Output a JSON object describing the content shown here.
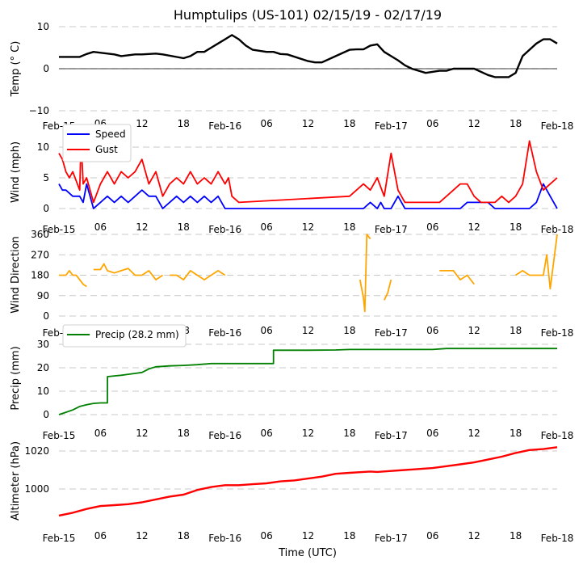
{
  "title": "Humptulips (US-101) 02/15/19 - 02/17/19",
  "xlabel": "Time (UTC)",
  "x_ticks": [
    "Feb-15",
    "06",
    "12",
    "18",
    "Feb-16",
    "06",
    "12",
    "18",
    "Feb-17",
    "06",
    "12",
    "18",
    "Feb-18"
  ],
  "chart_data": [
    {
      "type": "line",
      "name": "temperature",
      "ylabel": "Temp ($^\\circ$C)",
      "ylabel_display": "Temp (° C)",
      "ylim": [
        -10,
        10
      ],
      "yticks": [
        {
          "v": 10,
          "label": "10"
        },
        {
          "v": 0,
          "label": "0"
        },
        {
          "v": -10,
          "label": "−10"
        }
      ],
      "zero_line": true,
      "series": [
        {
          "name": "Temp",
          "color": "#000000",
          "x_hours": [
            0,
            3,
            4,
            5,
            8,
            9,
            11,
            12,
            14,
            15,
            18,
            19,
            20,
            21,
            22,
            23,
            24,
            25,
            26,
            27,
            28,
            30,
            31,
            32,
            33,
            36,
            37,
            38,
            40,
            42,
            43,
            44,
            45,
            46,
            47,
            48,
            49,
            50,
            51,
            52,
            53,
            55,
            56,
            57,
            58,
            59,
            60,
            62,
            63,
            64,
            65,
            66,
            67,
            68,
            69,
            70,
            71,
            72
          ],
          "values": [
            2.8,
            2.8,
            3.5,
            4,
            3.4,
            3,
            3.4,
            3.4,
            3.6,
            3.4,
            2.5,
            3.0,
            4,
            4,
            5,
            6,
            7,
            8,
            7,
            5.5,
            4.5,
            4,
            4,
            3.5,
            3.4,
            1.8,
            1.5,
            1.5,
            3,
            4.5,
            4.6,
            4.6,
            5.5,
            5.8,
            4,
            3,
            2,
            0.8,
            0,
            -0.5,
            -1,
            -0.5,
            -0.5,
            0,
            0,
            0,
            0,
            -1.5,
            -2,
            -2,
            -2,
            -1,
            3,
            4.5,
            6,
            7,
            7,
            6
          ]
        }
      ]
    },
    {
      "type": "line",
      "name": "wind",
      "ylabel": "Wind (mph)",
      "ylim": [
        -0.5,
        11.5
      ],
      "yticks": [
        {
          "v": 10,
          "label": "10"
        },
        {
          "v": 5,
          "label": "5"
        },
        {
          "v": 0,
          "label": "0"
        }
      ],
      "legend": {
        "placement": "top-left",
        "entries": [
          {
            "label": "Speed",
            "color": "#0000ff"
          },
          {
            "label": "Gust",
            "color": "#ff0000"
          }
        ]
      },
      "series": [
        {
          "name": "Speed",
          "color": "#0000ff",
          "x_hours": [
            0,
            0.5,
            1,
            2,
            3,
            3.5,
            4,
            5,
            6,
            7,
            8,
            9,
            10,
            11,
            12,
            13,
            14,
            15,
            16,
            17,
            18,
            19,
            20,
            21,
            22,
            23,
            24,
            24.5,
            25,
            44,
            45,
            46,
            46.5,
            47,
            48,
            49,
            50,
            51,
            52,
            56,
            57,
            58,
            59,
            60,
            61,
            62,
            63,
            64,
            65,
            66,
            67,
            68,
            69,
            70,
            71,
            72
          ],
          "values": [
            4,
            3,
            3,
            2,
            2,
            1,
            4,
            0,
            1,
            2,
            1,
            2,
            1,
            2,
            3,
            2,
            2,
            0,
            1,
            2,
            1,
            2,
            1,
            2,
            1,
            2,
            0,
            0,
            0,
            0,
            1,
            0,
            1,
            0,
            0,
            2,
            0,
            0,
            0,
            0,
            0,
            0,
            1,
            1,
            1,
            1,
            0,
            0,
            0,
            0,
            0,
            0,
            1,
            4,
            2,
            0
          ]
        },
        {
          "name": "Gust",
          "color": "#ff0000",
          "x_hours": [
            0,
            0.5,
            1,
            1.5,
            2,
            3,
            3.2,
            3.5,
            4,
            5,
            6,
            7,
            8,
            9,
            10,
            11,
            12,
            13,
            14,
            15,
            16,
            17,
            18,
            19,
            20,
            21,
            22,
            23,
            24,
            24.5,
            25,
            26,
            42,
            44,
            45,
            46,
            47,
            48,
            49,
            50,
            51,
            52,
            53,
            55,
            56,
            57,
            58,
            59,
            60,
            61,
            62,
            63,
            64,
            65,
            66,
            67,
            68,
            69,
            70,
            71,
            72
          ],
          "values": [
            9,
            8,
            6,
            5,
            6,
            3,
            11,
            4,
            5,
            1,
            4,
            6,
            4,
            6,
            5,
            6,
            8,
            4,
            6,
            2,
            4,
            5,
            4,
            6,
            4,
            5,
            4,
            6,
            4,
            5,
            2,
            1,
            2,
            4,
            3,
            5,
            2,
            9,
            3,
            1,
            1,
            1,
            1,
            1,
            2,
            3,
            4,
            4,
            2,
            1,
            1,
            1,
            2,
            1,
            2,
            4,
            11,
            6,
            3,
            4,
            5,
            2
          ]
        }
      ]
    },
    {
      "type": "line",
      "name": "wind_direction",
      "ylabel": "Wind Direction",
      "ylim": [
        0,
        360
      ],
      "yticks": [
        {
          "v": 360,
          "label": "360"
        },
        {
          "v": 270,
          "label": "270"
        },
        {
          "v": 180,
          "label": "180"
        },
        {
          "v": 90,
          "label": "90"
        },
        {
          "v": 0,
          "label": "0"
        }
      ],
      "series": [
        {
          "name": "Direction",
          "color": "#ffa500",
          "segments": [
            {
              "x_hours": [
                0,
                1,
                1.5,
                2,
                2.5,
                3,
                3.5,
                4
              ],
              "values": [
                180,
                180,
                200,
                180,
                180,
                160,
                140,
                130
              ]
            },
            {
              "x_hours": [
                5,
                6,
                6.5,
                7,
                8,
                9,
                10,
                11,
                12,
                13,
                14,
                15
              ],
              "values": [
                205,
                205,
                230,
                200,
                190,
                200,
                210,
                180,
                180,
                200,
                160,
                180
              ]
            },
            {
              "x_hours": [
                16,
                17,
                18,
                19,
                20,
                21,
                22,
                23,
                24
              ],
              "values": [
                180,
                180,
                160,
                200,
                180,
                160,
                180,
                200,
                180
              ]
            },
            {
              "x_hours": [
                43.5,
                44,
                44.2,
                44.5,
                45
              ],
              "values": [
                160,
                80,
                20,
                360,
                340
              ]
            },
            {
              "x_hours": [
                47,
                47.5,
                48
              ],
              "values": [
                70,
                100,
                160
              ]
            },
            {
              "x_hours": [
                55,
                56,
                57,
                58,
                59,
                60
              ],
              "values": [
                200,
                200,
                200,
                160,
                180,
                140
              ]
            },
            {
              "x_hours": [
                66,
                67,
                68,
                69,
                70,
                70.5,
                71,
                72
              ],
              "values": [
                180,
                200,
                180,
                180,
                180,
                270,
                120,
                360
              ]
            }
          ]
        }
      ]
    },
    {
      "type": "line",
      "name": "precip",
      "ylabel": "Precip (mm)",
      "ylim": [
        -1,
        31
      ],
      "yticks": [
        {
          "v": 30,
          "label": "30"
        },
        {
          "v": 20,
          "label": "20"
        },
        {
          "v": 10,
          "label": "10"
        },
        {
          "v": 0,
          "label": "0"
        }
      ],
      "legend": {
        "placement": "top-left",
        "entries": [
          {
            "label": "Precip (28.2 mm)",
            "color": "#008000"
          }
        ]
      },
      "series": [
        {
          "name": "Precip (28.2 mm)",
          "color": "#008000",
          "x_hours": [
            0,
            1,
            2,
            3,
            4,
            5,
            6,
            7,
            7.01,
            8,
            9,
            10,
            11,
            12,
            13,
            14,
            15,
            16,
            18,
            20,
            22,
            24,
            26,
            28,
            30,
            31,
            31.01,
            32,
            36,
            40,
            42,
            44,
            48,
            50,
            54,
            56,
            60,
            64,
            68,
            72
          ],
          "values": [
            0,
            1,
            2,
            3.5,
            4.2,
            4.8,
            5,
            5,
            16.2,
            16.5,
            16.8,
            17.2,
            17.6,
            18,
            19.5,
            20.4,
            20.6,
            20.8,
            21,
            21.3,
            21.8,
            21.8,
            21.8,
            21.8,
            21.8,
            21.8,
            27.5,
            27.5,
            27.5,
            27.6,
            27.8,
            27.8,
            27.8,
            27.8,
            27.8,
            28.2,
            28.2,
            28.2,
            28.2,
            28.2
          ]
        }
      ]
    },
    {
      "type": "line",
      "name": "altimeter",
      "ylabel": "Altimeter (hPa)",
      "ylim": [
        988,
        1023
      ],
      "yticks": [
        {
          "v": 1020,
          "label": "1020"
        },
        {
          "v": 1000,
          "label": "1000"
        }
      ],
      "series": [
        {
          "name": "Altimeter",
          "color": "#ff0000",
          "x_hours": [
            0,
            2,
            4,
            6,
            8,
            10,
            12,
            14,
            16,
            18,
            20,
            22,
            24,
            26,
            28,
            30,
            32,
            34,
            36,
            38,
            40,
            42,
            44,
            45,
            46,
            48,
            50,
            52,
            54,
            56,
            58,
            60,
            62,
            64,
            66,
            68,
            70,
            72
          ],
          "values": [
            986,
            987.5,
            989.5,
            991,
            991.5,
            992,
            993,
            994.5,
            996,
            997,
            999.5,
            1001,
            1002,
            1002,
            1002.5,
            1003,
            1004,
            1004.5,
            1005.5,
            1006.5,
            1008,
            1008.5,
            1009,
            1009.2,
            1009,
            1009.5,
            1010,
            1010.5,
            1011,
            1012,
            1013,
            1014,
            1015.5,
            1017,
            1019,
            1020.5,
            1021,
            1022
          ]
        }
      ]
    }
  ]
}
